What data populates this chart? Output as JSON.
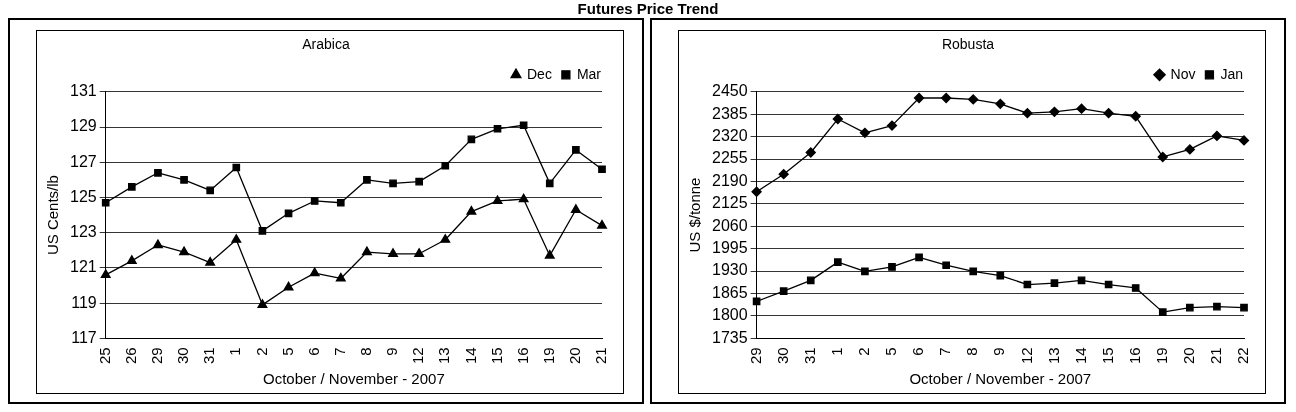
{
  "chart_data": [
    {
      "type": "other",
      "title": "Futures Price Trend"
    },
    {
      "type": "line",
      "title": "Arabica",
      "xlabel": "October / November - 2007",
      "ylabel": "US Cents/lb",
      "categories": [
        "25",
        "26",
        "29",
        "30",
        "31",
        "1",
        "2",
        "5",
        "6",
        "7",
        "8",
        "9",
        "12",
        "13",
        "14",
        "15",
        "16",
        "19",
        "20",
        "21"
      ],
      "series": [
        {
          "name": "Dec",
          "color": "#000000",
          "marker": "triangle",
          "values": [
            120.6,
            121.4,
            122.3,
            121.9,
            121.3,
            122.6,
            118.9,
            119.9,
            120.7,
            120.4,
            121.9,
            121.8,
            121.8,
            122.6,
            124.2,
            124.8,
            124.9,
            121.7,
            124.3,
            123.4
          ]
        },
        {
          "name": "Mar",
          "color": "#000000",
          "marker": "square",
          "values": [
            124.7,
            125.6,
            126.4,
            126.0,
            125.4,
            126.7,
            123.1,
            124.1,
            124.8,
            124.7,
            126.0,
            125.8,
            125.9,
            126.8,
            128.3,
            128.9,
            129.1,
            125.8,
            127.7,
            126.6
          ]
        }
      ],
      "ylim": [
        117,
        131
      ],
      "yticks": [
        117,
        119,
        121,
        123,
        125,
        127,
        129,
        131
      ],
      "grid": "y",
      "legend": "top right",
      "line_style": "solid"
    },
    {
      "type": "line",
      "title": "Robusta",
      "xlabel": "October / November - 2007",
      "ylabel": "US $/tonne",
      "categories": [
        "29",
        "30",
        "31",
        "1",
        "2",
        "5",
        "6",
        "7",
        "8",
        "9",
        "12",
        "13",
        "14",
        "15",
        "16",
        "19",
        "20",
        "21",
        "22"
      ],
      "series": [
        {
          "name": "Nov",
          "color": "#000000",
          "marker": "diamond",
          "values": [
            2160,
            2211,
            2274,
            2371,
            2331,
            2352,
            2432,
            2432,
            2428,
            2415,
            2388,
            2392,
            2401,
            2388,
            2379,
            2261,
            2283,
            2322,
            2309
          ]
        },
        {
          "name": "Jan",
          "color": "#000000",
          "marker": "square",
          "values": [
            1842,
            1872,
            1903,
            1956,
            1929,
            1942,
            1970,
            1947,
            1929,
            1917,
            1891,
            1895,
            1903,
            1891,
            1881,
            1811,
            1824,
            1827,
            1824
          ]
        }
      ],
      "ylim": [
        1735,
        2450
      ],
      "yticks": [
        1735,
        1800,
        1865,
        1930,
        1995,
        2060,
        2125,
        2190,
        2255,
        2320,
        2385,
        2450
      ],
      "grid": "y",
      "legend": "top right",
      "line_style": "solid"
    }
  ]
}
